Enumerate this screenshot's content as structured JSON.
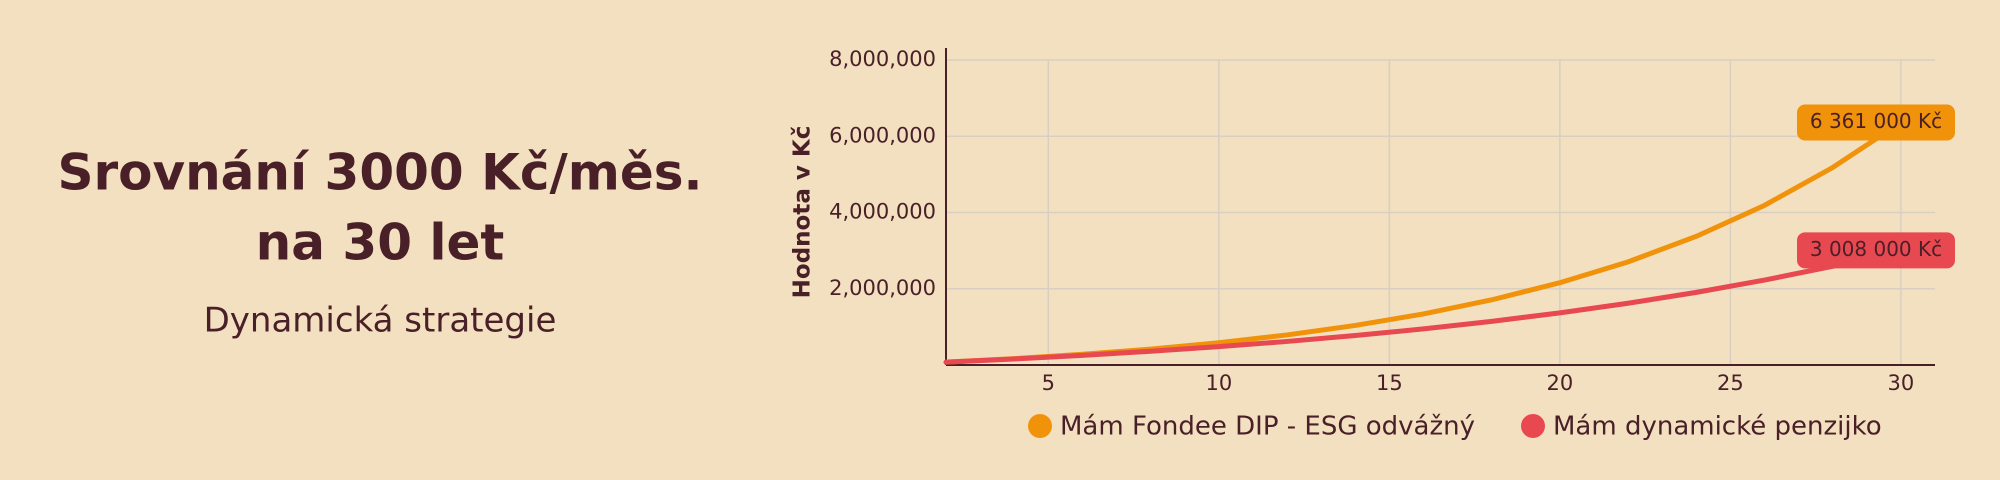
{
  "header": {
    "title_lines": [
      "Srovnání 3000 Kč/měs.",
      "na 30 let"
    ],
    "subtitle": "Dynamická strategie"
  },
  "chart_data": {
    "type": "line",
    "y_label": "Hodnota v Kč",
    "x": [
      2,
      4,
      6,
      8,
      10,
      12,
      14,
      16,
      18,
      20,
      22,
      24,
      26,
      28,
      30
    ],
    "series": [
      {
        "name": "Mám Fondee DIP - ESG odvážný",
        "color": "#f0920a",
        "values": [
          75700,
          168100,
          280600,
          417700,
          584900,
          788700,
          1037000,
          1339600,
          1708300,
          2157900,
          2705900,
          3374000,
          4187400,
          5179900,
          6361000
        ],
        "value_labels": [
          null,
          null,
          null,
          null,
          null,
          null,
          null,
          null,
          null,
          null,
          null,
          null,
          null,
          null,
          "6 361 000 Kč"
        ]
      },
      {
        "name": "Mám dynamické penzijko",
        "color": "#e84850",
        "values": [
          74300,
          158200,
          253000,
          360200,
          481300,
          618100,
          772700,
          947500,
          1144900,
          1368000,
          1620100,
          1904900,
          2226900,
          2590300,
          3008000
        ],
        "value_labels": [
          null,
          null,
          null,
          null,
          null,
          null,
          null,
          null,
          null,
          null,
          null,
          null,
          null,
          null,
          "3 008 000 Kč"
        ]
      }
    ],
    "xlim": [
      2,
      31
    ],
    "xticks": [
      5,
      10,
      15,
      20,
      25,
      30
    ],
    "ylim": [
      0,
      8000000
    ],
    "yticks": [
      {
        "value": 2000000,
        "label": "2,000,000"
      },
      {
        "value": 4000000,
        "label": "4,000,000"
      },
      {
        "value": 6000000,
        "label": "6,000,000"
      },
      {
        "value": 8000000,
        "label": "8,000,000"
      }
    ],
    "grid": true
  }
}
